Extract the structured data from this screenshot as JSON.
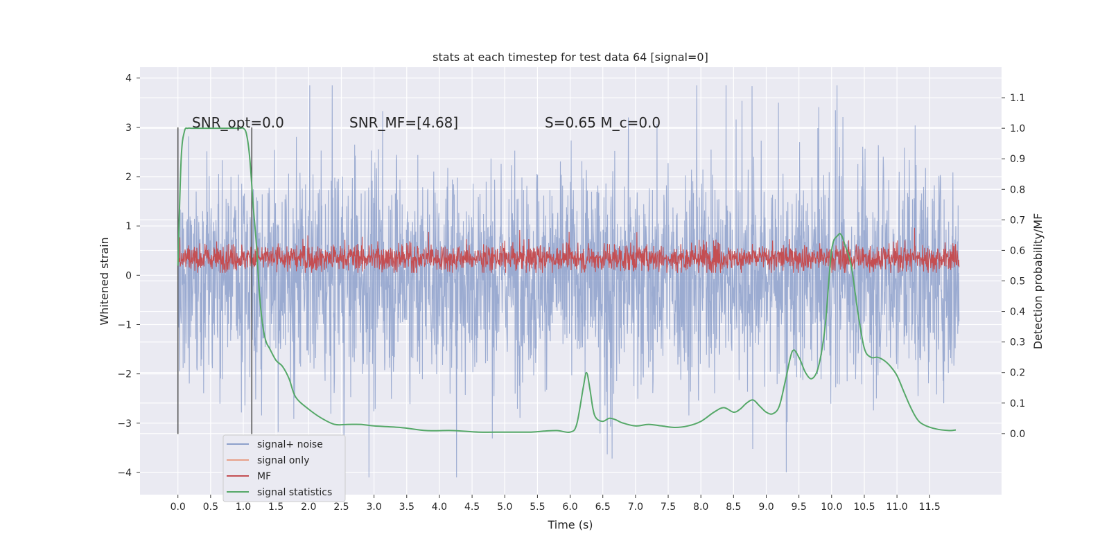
{
  "chart_data": {
    "type": "line",
    "title": "stats at each timestep for test data 64 [signal=0]",
    "xlabel": "Time (s)",
    "ylabel_left": "Whitened strain",
    "ylabel_right": "Detection probability/MF",
    "xlim": [
      -0.58,
      12.6
    ],
    "ylim_left": [
      -4.45,
      4.22
    ],
    "ylim_right": [
      -0.2,
      1.2
    ],
    "x_ticks": [
      "0.0",
      "0.5",
      "1.0",
      "1.5",
      "2.0",
      "2.5",
      "3.0",
      "3.5",
      "4.0",
      "4.5",
      "5.0",
      "5.5",
      "6.0",
      "6.5",
      "7.0",
      "7.5",
      "8.0",
      "8.5",
      "9.0",
      "9.5",
      "10.0",
      "10.5",
      "11.0",
      "11.5"
    ],
    "y_ticks_left": [
      "4",
      "3",
      "2",
      "1",
      "0",
      "−1",
      "−2",
      "−3",
      "−4"
    ],
    "y_ticks_right": [
      "1.1",
      "1.0",
      "0.9",
      "0.8",
      "0.7",
      "0.6",
      "0.5",
      "0.4",
      "0.3",
      "0.2",
      "0.1",
      "0.0"
    ],
    "grid": true,
    "legend_placement": "lower-left",
    "annotations": [
      {
        "text": "SNR_opt=0.0"
      },
      {
        "text": "SNR_MF=[4.68]"
      },
      {
        "text": "S=0.65   M_c=0.0"
      }
    ],
    "vertical_markers": [
      0.0,
      1.13
    ],
    "series": [
      {
        "name": "signal+ noise",
        "axis": "left",
        "color": "#8da0cb",
        "note": "noise band over 0.0–11.95 s",
        "envelope_max": 3.85,
        "envelope_min": -4.1
      },
      {
        "name": "signal only",
        "axis": "left",
        "color": "#e8a088",
        "values": []
      },
      {
        "name": "MF",
        "axis": "left",
        "color": "#c44e52",
        "envelope_max": 1.0,
        "envelope_min": 0.05
      },
      {
        "name": "signal statistics",
        "axis": "right",
        "color": "#55a868",
        "x": [
          0.0,
          0.05,
          0.1,
          0.15,
          0.2,
          0.3,
          0.5,
          0.8,
          0.95,
          1.0,
          1.05,
          1.1,
          1.15,
          1.2,
          1.25,
          1.3,
          1.35,
          1.4,
          1.5,
          1.6,
          1.7,
          1.8,
          2.0,
          2.2,
          2.4,
          2.6,
          2.8,
          3.0,
          3.4,
          3.8,
          4.2,
          4.6,
          5.0,
          5.4,
          5.6,
          5.8,
          6.0,
          6.1,
          6.2,
          6.25,
          6.3,
          6.35,
          6.4,
          6.5,
          6.6,
          6.7,
          6.8,
          7.0,
          7.2,
          7.4,
          7.6,
          7.8,
          8.0,
          8.2,
          8.35,
          8.5,
          8.6,
          8.7,
          8.8,
          8.9,
          9.0,
          9.1,
          9.2,
          9.3,
          9.4,
          9.5,
          9.6,
          9.7,
          9.8,
          9.9,
          10.0,
          10.1,
          10.15,
          10.2,
          10.3,
          10.4,
          10.5,
          10.6,
          10.7,
          10.8,
          10.9,
          11.0,
          11.1,
          11.2,
          11.3,
          11.4,
          11.6,
          11.8,
          11.9
        ],
        "values": [
          0.55,
          0.9,
          0.99,
          1.0,
          1.0,
          1.0,
          1.0,
          1.0,
          1.0,
          1.0,
          0.98,
          0.9,
          0.75,
          0.62,
          0.45,
          0.35,
          0.3,
          0.28,
          0.24,
          0.22,
          0.18,
          0.12,
          0.08,
          0.05,
          0.03,
          0.03,
          0.03,
          0.025,
          0.02,
          0.01,
          0.01,
          0.005,
          0.005,
          0.005,
          0.008,
          0.01,
          0.005,
          0.03,
          0.15,
          0.2,
          0.15,
          0.08,
          0.05,
          0.04,
          0.05,
          0.045,
          0.035,
          0.025,
          0.03,
          0.025,
          0.02,
          0.025,
          0.04,
          0.07,
          0.085,
          0.07,
          0.08,
          0.1,
          0.11,
          0.09,
          0.07,
          0.065,
          0.09,
          0.18,
          0.27,
          0.25,
          0.2,
          0.18,
          0.22,
          0.35,
          0.6,
          0.65,
          0.65,
          0.62,
          0.55,
          0.4,
          0.28,
          0.25,
          0.25,
          0.24,
          0.22,
          0.19,
          0.14,
          0.09,
          0.05,
          0.03,
          0.015,
          0.01,
          0.012
        ]
      }
    ]
  }
}
